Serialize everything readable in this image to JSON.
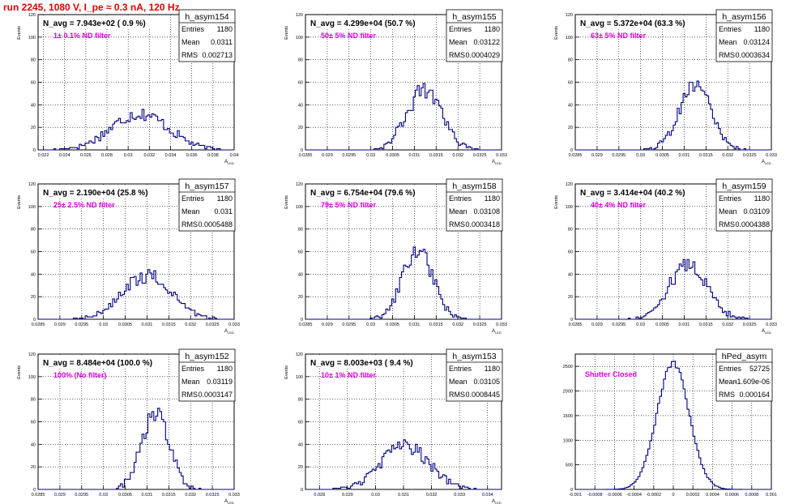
{
  "page_title": "run 2245,  1080 V, I_pe ≈ 0.3 nA, 120 Hz",
  "colors": {
    "title": "#e00000",
    "histogram": "#000080",
    "annotation": "#e000e0",
    "grid": "#000000"
  },
  "chart_data": [
    {
      "type": "histogram",
      "name": "h_asym154",
      "nav": "N_avg = 7.943e+02 ( 0.9 %)",
      "filter": "1± 0.1% ND filter",
      "stats": {
        "entries": "1180",
        "mean": "0.0311",
        "rms": "0.002713"
      },
      "xlabel": "A",
      "xlabel_sub": "LED",
      "ylabel": "Events",
      "xlim": [
        0.0215,
        0.04
      ],
      "ylim": [
        0,
        120
      ],
      "grid": true,
      "xticks": [
        "0.022",
        "0.024",
        "0.026",
        "0.028",
        "0.03",
        "0.032",
        "0.034",
        "0.036",
        "0.038",
        "0.04"
      ],
      "yticks": [
        "0",
        "20",
        "40",
        "60",
        "80",
        "100",
        "120"
      ],
      "mean": 0.0311,
      "sigma": 0.0027,
      "entries": 1180,
      "bins": 100
    },
    {
      "type": "histogram",
      "name": "h_asym155",
      "nav": "N_avg = 4.299e+04 (50.7 %)",
      "filter": "50± 5% ND filter",
      "stats": {
        "entries": "1180",
        "mean": "0.03122",
        "rms": "0.0004029"
      },
      "xlabel": "A",
      "xlabel_sub": "LED",
      "ylabel": "Events",
      "xlim": [
        0.0285,
        0.033
      ],
      "ylim": [
        0,
        120
      ],
      "grid": true,
      "xticks": [
        "0.0285",
        "0.029",
        "0.0295",
        "0.03",
        "0.0305",
        "0.031",
        "0.0315",
        "0.032",
        "0.0325",
        "0.033"
      ],
      "yticks": [
        "0",
        "20",
        "40",
        "60",
        "80",
        "100",
        "120"
      ],
      "mean": 0.03122,
      "sigma": 0.000403,
      "entries": 1180,
      "bins": 100
    },
    {
      "type": "histogram",
      "name": "h_asym156",
      "nav": "N_avg = 5.372e+04 (63.3 %)",
      "filter": "63± 5% ND filter",
      "stats": {
        "entries": "1180",
        "mean": "0.03124",
        "rms": "0.0003634"
      },
      "xlabel": "A",
      "xlabel_sub": "LED",
      "ylabel": "Events",
      "xlim": [
        0.0285,
        0.033
      ],
      "ylim": [
        0,
        120
      ],
      "grid": true,
      "xticks": [
        "0.0285",
        "0.029",
        "0.0295",
        "0.03",
        "0.0305",
        "0.031",
        "0.0315",
        "0.032",
        "0.0325",
        "0.033"
      ],
      "yticks": [
        "0",
        "20",
        "40",
        "60",
        "80",
        "100",
        "120"
      ],
      "mean": 0.03124,
      "sigma": 0.000363,
      "entries": 1180,
      "bins": 100
    },
    {
      "type": "histogram",
      "name": "h_asym157",
      "nav": "N_avg = 2.190e+04 (25.8 %)",
      "filter": "25± 2.5% ND filter",
      "stats": {
        "entries": "1180",
        "mean": "0.031",
        "rms": "0.0005488"
      },
      "xlabel": "A",
      "xlabel_sub": "LED",
      "ylabel": "Events",
      "xlim": [
        0.0285,
        0.033
      ],
      "ylim": [
        0,
        120
      ],
      "grid": true,
      "xticks": [
        "0.0285",
        "0.029",
        "0.0295",
        "0.03",
        "0.0305",
        "0.031",
        "0.0315",
        "0.032",
        "0.0325",
        "0.033"
      ],
      "yticks": [
        "0",
        "20",
        "40",
        "60",
        "80",
        "100",
        "120"
      ],
      "mean": 0.031,
      "sigma": 0.000549,
      "entries": 1180,
      "bins": 100
    },
    {
      "type": "histogram",
      "name": "h_asym158",
      "nav": "N_avg = 6.754e+04 (79.6 %)",
      "filter": "79± 5% ND filter",
      "stats": {
        "entries": "1180",
        "mean": "0.03108",
        "rms": "0.0003418"
      },
      "xlabel": "A",
      "xlabel_sub": "LED",
      "ylabel": "Events",
      "xlim": [
        0.0285,
        0.033
      ],
      "ylim": [
        0,
        120
      ],
      "grid": true,
      "xticks": [
        "0.0285",
        "0.029",
        "0.0295",
        "0.03",
        "0.0305",
        "0.031",
        "0.0315",
        "0.032",
        "0.0325",
        "0.033"
      ],
      "yticks": [
        "0",
        "20",
        "40",
        "60",
        "80",
        "100",
        "120"
      ],
      "mean": 0.03108,
      "sigma": 0.000342,
      "entries": 1180,
      "bins": 100
    },
    {
      "type": "histogram",
      "name": "h_asym159",
      "nav": "N_avg = 3.414e+04 (40.2 %)",
      "filter": "40± 4% ND filter",
      "stats": {
        "entries": "1180",
        "mean": "0.03109",
        "rms": "0.0004388"
      },
      "xlabel": "A",
      "xlabel_sub": "LED",
      "ylabel": "Events",
      "xlim": [
        0.0285,
        0.033
      ],
      "ylim": [
        0,
        120
      ],
      "grid": true,
      "xticks": [
        "0.0285",
        "0.029",
        "0.0295",
        "0.03",
        "0.0305",
        "0.031",
        "0.0315",
        "0.032",
        "0.0325",
        "0.033"
      ],
      "yticks": [
        "0",
        "20",
        "40",
        "60",
        "80",
        "100",
        "120"
      ],
      "mean": 0.03109,
      "sigma": 0.000439,
      "entries": 1180,
      "bins": 100
    },
    {
      "type": "histogram",
      "name": "h_asym152",
      "nav": "N_avg = 8.484e+04 (100.0 %)",
      "filter": "100% (No filter)",
      "stats": {
        "entries": "1180",
        "mean": "0.03119",
        "rms": "0.0003147"
      },
      "xlabel": "A",
      "xlabel_sub": "LED",
      "ylabel": "Events",
      "xlim": [
        0.0285,
        0.033
      ],
      "ylim": [
        0,
        120
      ],
      "grid": true,
      "xticks": [
        "0.0285",
        "0.029",
        "0.0295",
        "0.03",
        "0.0305",
        "0.031",
        "0.0315",
        "0.032",
        "0.0325",
        "0.033"
      ],
      "yticks": [
        "0",
        "20",
        "40",
        "60",
        "80",
        "100",
        "120"
      ],
      "mean": 0.03119,
      "sigma": 0.000315,
      "entries": 1180,
      "bins": 100
    },
    {
      "type": "histogram",
      "name": "h_asym153",
      "nav": "N_avg = 8.003e+03 ( 9.4 %)",
      "filter": "10± 1% ND filter",
      "stats": {
        "entries": "1180",
        "mean": "0.03105",
        "rms": "0.0008445"
      },
      "xlabel": "A",
      "xlabel_sub": "LED",
      "ylabel": "Events",
      "xlim": [
        0.0275,
        0.0345
      ],
      "ylim": [
        0,
        120
      ],
      "grid": true,
      "xticks": [
        "0.028",
        "0.029",
        "0.03",
        "0.031",
        "0.032",
        "0.033",
        "0.034"
      ],
      "yticks": [
        "0",
        "20",
        "40",
        "60",
        "80",
        "100",
        "120"
      ],
      "mean": 0.03105,
      "sigma": 0.000845,
      "entries": 1180,
      "bins": 100
    },
    {
      "type": "histogram",
      "name": "hPed_asym",
      "nav": "",
      "filter": "Shutter Closed",
      "stats": {
        "entries": "52725",
        "mean": "-1.609e-06",
        "rms": "0.000164"
      },
      "xlabel": "",
      "xlabel_sub": "",
      "ylabel": "",
      "xlim": [
        -0.001,
        0.001
      ],
      "ylim": [
        0,
        2750
      ],
      "grid": true,
      "xticks": [
        "-0.001",
        "-0.0008",
        "-0.0006",
        "-0.0004",
        "-0.0002",
        "0",
        "0.0002",
        "0.0004",
        "0.0006",
        "0.0008",
        "0.001"
      ],
      "yticks": [
        "0",
        "500",
        "1000",
        "1500",
        "2000",
        "2500"
      ],
      "mean": -1.6e-06,
      "sigma": 0.000164,
      "entries": 52725,
      "bins": 100
    }
  ],
  "stats_labels": {
    "entries": "Entries",
    "mean": "Mean",
    "rms": "RMS"
  }
}
